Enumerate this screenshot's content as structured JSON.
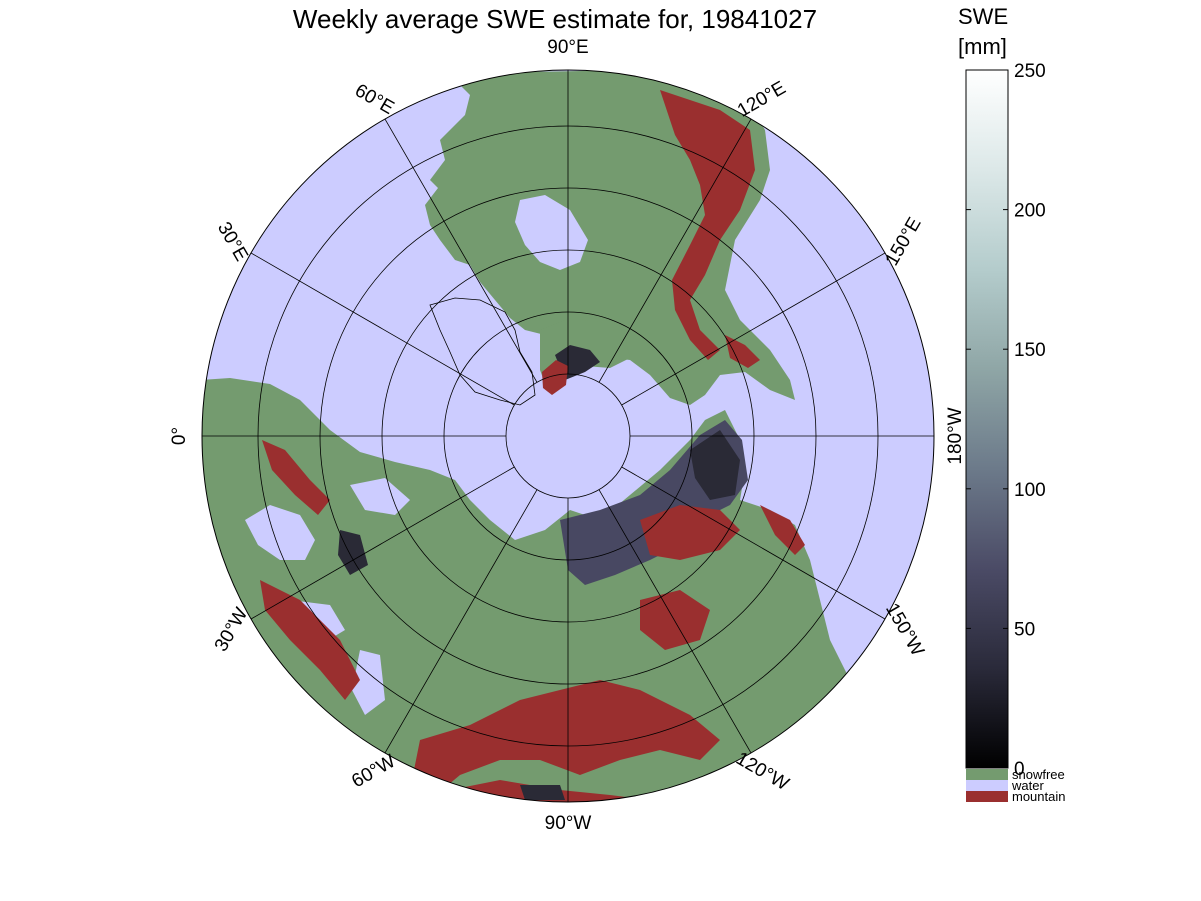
{
  "title": "Weekly average SWE estimate for, 19841027",
  "colorbar": {
    "title_line1": "SWE",
    "title_line2": "[mm]",
    "min": 0,
    "max": 250,
    "ticks": [
      "0",
      "50",
      "100",
      "150",
      "200",
      "250"
    ],
    "gradient_colors": [
      "#000000",
      "#2a2a3a",
      "#4b4b66",
      "#6c7a8a",
      "#8fa6a6",
      "#b4cccc",
      "#dce8e8",
      "#ffffff"
    ],
    "categories": [
      {
        "label": "snowfree",
        "color": "#749b6f"
      },
      {
        "label": "water",
        "color": "#ccccff"
      },
      {
        "label": "mountain",
        "color": "#9a2f2f"
      }
    ]
  },
  "map": {
    "projection": "north polar stereographic",
    "colors": {
      "ocean": "#ccccff",
      "land_snowfree": "#749b6f",
      "mountain": "#9a2f2f",
      "snow_low": "#2a2a36",
      "snow_mid": "#484862"
    },
    "meridian_labels": [
      {
        "text": "90°W",
        "lon": -90
      },
      {
        "text": "120°W",
        "lon": -120
      },
      {
        "text": "150°W",
        "lon": -150
      },
      {
        "text": "180°W",
        "lon": 180
      },
      {
        "text": "150°E",
        "lon": 150
      },
      {
        "text": "120°E",
        "lon": 120
      },
      {
        "text": "90°E",
        "lon": 90
      },
      {
        "text": "60°E",
        "lon": 60
      },
      {
        "text": "30°E",
        "lon": 30
      },
      {
        "text": "0°",
        "lon": 0
      },
      {
        "text": "30°W",
        "lon": -30
      },
      {
        "text": "60°W",
        "lon": -60
      }
    ]
  }
}
